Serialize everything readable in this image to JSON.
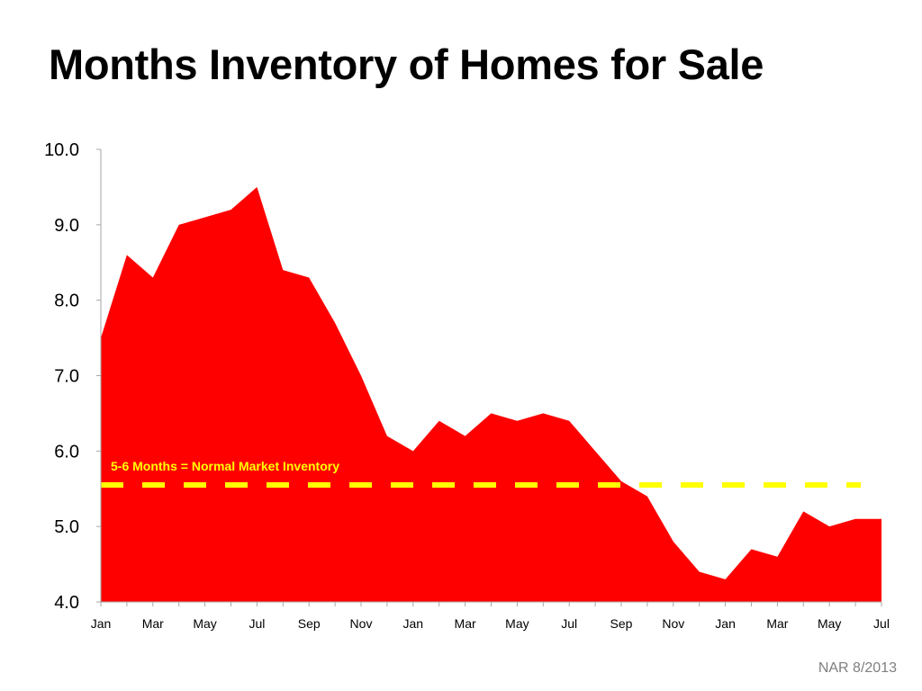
{
  "title": "Months Inventory of Homes for Sale",
  "source": "NAR 8/2013",
  "colors": {
    "area": "#ff0000",
    "reference": "#ffff00",
    "axis": "#a6a6a6"
  },
  "chart_data": {
    "type": "area",
    "title": "Months Inventory of Homes for Sale",
    "xlabel": "",
    "ylabel": "",
    "ylim": [
      4.0,
      10.0
    ],
    "y_ticks": [
      "4.0",
      "5.0",
      "6.0",
      "7.0",
      "8.0",
      "9.0",
      "10.0"
    ],
    "x_tick_labels": [
      "Jan",
      "Mar",
      "May",
      "Jul",
      "Sep",
      "Nov",
      "Jan",
      "Mar",
      "May",
      "Jul",
      "Sep",
      "Nov",
      "Jan",
      "Mar",
      "May",
      "Jul"
    ],
    "x": [
      "Jan",
      "Feb",
      "Mar",
      "Apr",
      "May",
      "Jun",
      "Jul",
      "Aug",
      "Sep",
      "Oct",
      "Nov",
      "Dec",
      "Jan",
      "Feb",
      "Mar",
      "Apr",
      "May",
      "Jun",
      "Jul",
      "Aug",
      "Sep",
      "Oct",
      "Nov",
      "Dec",
      "Jan",
      "Feb",
      "Mar",
      "Apr",
      "May",
      "Jun",
      "Jul"
    ],
    "values": [
      7.5,
      8.6,
      8.3,
      9.0,
      9.1,
      9.2,
      9.5,
      8.4,
      8.3,
      7.7,
      7.0,
      6.2,
      6.0,
      6.4,
      6.2,
      6.5,
      6.4,
      6.5,
      6.4,
      6.0,
      5.6,
      5.4,
      4.8,
      4.4,
      4.3,
      4.7,
      4.6,
      5.2,
      5.0,
      5.1,
      5.1
    ],
    "reference_line": {
      "value": 5.55,
      "label": "5-6 Months = Normal Market Inventory"
    },
    "grid": false,
    "legend": "none"
  }
}
